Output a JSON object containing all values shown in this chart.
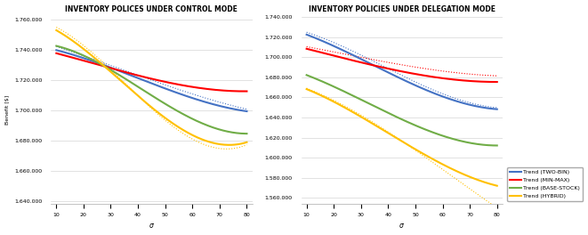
{
  "left_title": "INVENTORY POLICES UNDER CONTROL MODE",
  "right_title": "INVENTORY POLICIES UNDER DELEGATION MODE",
  "xlabel": "σ",
  "ylabel": "Benefit [$]",
  "x": [
    10,
    20,
    30,
    40,
    50,
    60,
    70,
    80
  ],
  "left_ylim": [
    1638000,
    1763000
  ],
  "left_yticks": [
    1640000,
    1660000,
    1680000,
    1700000,
    1720000,
    1740000,
    1760000
  ],
  "right_ylim": [
    1554000,
    1742000
  ],
  "right_yticks": [
    1560000,
    1580000,
    1600000,
    1620000,
    1640000,
    1660000,
    1680000,
    1700000,
    1720000,
    1740000
  ],
  "left_two_bin": [
    1739000,
    1736000,
    1728000,
    1720000,
    1714000,
    1709000,
    1703000,
    1699000
  ],
  "left_min_max": [
    1737000,
    1734000,
    1728000,
    1722000,
    1718000,
    1716000,
    1714000,
    1712000
  ],
  "left_base_stock": [
    1742000,
    1737000,
    1727000,
    1715000,
    1703000,
    1695000,
    1688000,
    1684000
  ],
  "left_hybrid": [
    1752000,
    1742000,
    1726000,
    1708000,
    1694000,
    1684000,
    1679000,
    1678000
  ],
  "left_two_bin_dot": [
    1741000,
    1738000,
    1730000,
    1721000,
    1716000,
    1712000,
    1706000,
    1700000
  ],
  "left_hybrid_dot": [
    1754000,
    1744000,
    1728000,
    1708000,
    1692000,
    1681000,
    1677000,
    1676000
  ],
  "right_two_bin": [
    1722000,
    1712000,
    1698000,
    1684000,
    1672000,
    1661000,
    1653000,
    1648000
  ],
  "right_min_max": [
    1708000,
    1702000,
    1695000,
    1688000,
    1683000,
    1679000,
    1677000,
    1675000
  ],
  "right_base_stock": [
    1682000,
    1671000,
    1658000,
    1644000,
    1632000,
    1622000,
    1615000,
    1612000
  ],
  "right_hybrid": [
    1668000,
    1656000,
    1641000,
    1624000,
    1608000,
    1594000,
    1581000,
    1572000
  ],
  "right_two_bin_dot": [
    1724000,
    1716000,
    1702000,
    1688000,
    1674000,
    1664000,
    1656000,
    1649000
  ],
  "right_min_max_dot": [
    1710000,
    1706000,
    1700000,
    1694000,
    1690000,
    1686000,
    1684000,
    1681000
  ],
  "right_hybrid_dot": [
    1669000,
    1657000,
    1643000,
    1625000,
    1607000,
    1589000,
    1569000,
    1550000
  ],
  "color_two_bin": "#4472c4",
  "color_min_max": "#ff0000",
  "color_base_stock": "#70ad47",
  "color_hybrid": "#ffc000",
  "color_bg": "#ffffff",
  "legend_labels": [
    "Trend (TWO-BIN)",
    "Trend (MIN-MAX)",
    "Trend (BASE-STOCK)",
    "Trend (HYBRID)"
  ]
}
